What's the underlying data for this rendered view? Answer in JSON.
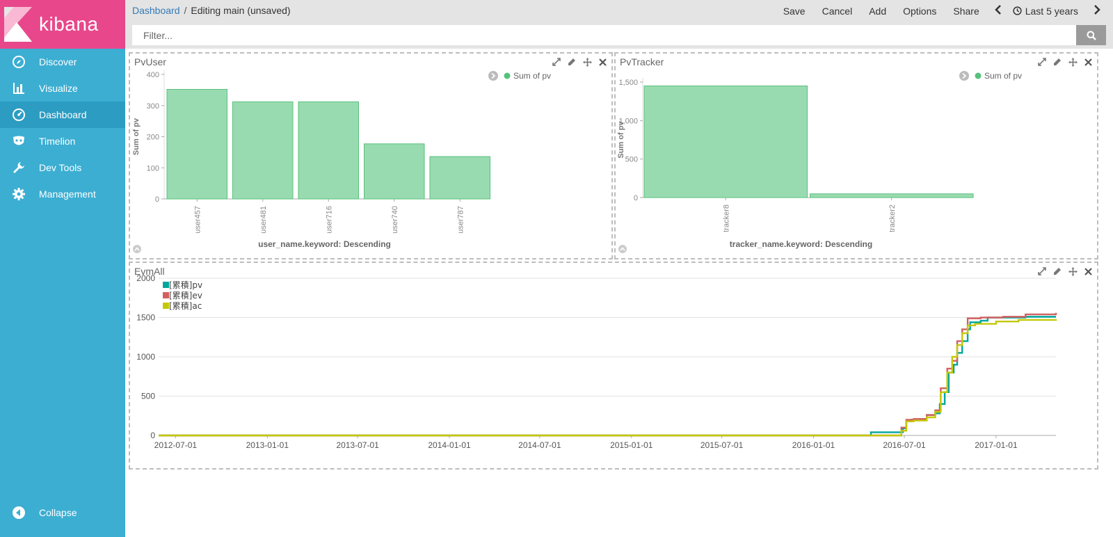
{
  "sidebar": {
    "brand": "kibana",
    "items": [
      {
        "label": "Discover",
        "icon": "compass-icon"
      },
      {
        "label": "Visualize",
        "icon": "bar-chart-icon"
      },
      {
        "label": "Dashboard",
        "icon": "dashboard-gauge-icon",
        "active": true
      },
      {
        "label": "Timelion",
        "icon": "timelion-mask-icon"
      },
      {
        "label": "Dev Tools",
        "icon": "wrench-icon"
      },
      {
        "label": "Management",
        "icon": "gear-icon"
      }
    ],
    "collapse_label": "Collapse"
  },
  "topbar": {
    "breadcrumb_root": "Dashboard",
    "breadcrumb_sep": "/",
    "breadcrumb_current": "Editing main (unsaved)",
    "menu": [
      "Save",
      "Cancel",
      "Add",
      "Options",
      "Share"
    ],
    "time_label": "Last 5 years"
  },
  "filter": {
    "placeholder": "Filter...",
    "value": ""
  },
  "colors": {
    "brand_pink": "#e8488b",
    "sidebar": "#3caed2",
    "bar_fill": "#99dbb0",
    "bar_stroke": "#57c17b",
    "series_pv": "#00a69b",
    "series_ev": "#d36060",
    "series_ac": "#c4c808"
  },
  "panels": {
    "pvuser": {
      "title": "PvUser",
      "chart_data": {
        "type": "bar",
        "categories": [
          "user457",
          "user481",
          "user716",
          "user740",
          "user787"
        ],
        "values": [
          352,
          312,
          312,
          177,
          136
        ],
        "ylabel": "Sum of pv",
        "xlabel": "user_name.keyword: Descending",
        "yticks": [
          0,
          100,
          200,
          300,
          400
        ],
        "ylim": [
          0,
          400
        ],
        "legend": [
          {
            "name": "Sum of pv",
            "color": "#57c17b"
          }
        ],
        "legend_position": "top-right"
      }
    },
    "pvtracker": {
      "title": "PvTracker",
      "chart_data": {
        "type": "bar",
        "categories": [
          "tracker8",
          "tracker2"
        ],
        "values": [
          1450,
          48
        ],
        "ylabel": "Sum of pv",
        "xlabel": "tracker_name.keyword: Descending",
        "yticks": [
          0,
          500,
          1000,
          1500
        ],
        "ytick_labels": [
          "0",
          "500",
          "1,000",
          "1,500"
        ],
        "ylim": [
          0,
          1500
        ],
        "legend": [
          {
            "name": "Sum of pv",
            "color": "#57c17b"
          }
        ],
        "legend_position": "top-right"
      }
    },
    "evmall": {
      "title": "EvmAll",
      "chart_data": {
        "type": "line",
        "x_ticks": [
          "2012-07-01",
          "2013-01-01",
          "2013-07-01",
          "2014-01-01",
          "2014-07-01",
          "2015-01-01",
          "2015-07-01",
          "2016-01-01",
          "2016-07-01",
          "2017-01-01"
        ],
        "xlim": [
          "2012-05-28",
          "2017-05-01"
        ],
        "yticks": [
          0,
          500,
          1000,
          1500,
          2000
        ],
        "ylim": [
          0,
          2000
        ],
        "grid": true,
        "legend_position": "top-left",
        "series": [
          {
            "name": "[累積]pv",
            "color": "#00a69b",
            "points": [
              [
                "2012-05-28",
                0
              ],
              [
                "2016-04-25",
                0
              ],
              [
                "2016-04-25",
                40
              ],
              [
                "2016-06-20",
                40
              ],
              [
                "2016-06-28",
                90
              ],
              [
                "2016-07-05",
                180
              ],
              [
                "2016-07-15",
                200
              ],
              [
                "2016-08-01",
                210
              ],
              [
                "2016-08-15",
                260
              ],
              [
                "2016-09-01",
                280
              ],
              [
                "2016-09-10",
                400
              ],
              [
                "2016-09-20",
                550
              ],
              [
                "2016-09-28",
                800
              ],
              [
                "2016-10-08",
                900
              ],
              [
                "2016-10-15",
                1050
              ],
              [
                "2016-10-25",
                1200
              ],
              [
                "2016-11-05",
                1350
              ],
              [
                "2016-11-10",
                1440
              ],
              [
                "2016-12-01",
                1460
              ],
              [
                "2016-12-15",
                1500
              ],
              [
                "2017-02-01",
                1500
              ],
              [
                "2017-03-01",
                1510
              ],
              [
                "2017-05-01",
                1510
              ]
            ]
          },
          {
            "name": "[累積]ev",
            "color": "#d36060",
            "points": [
              [
                "2012-05-28",
                0
              ],
              [
                "2016-06-10",
                0
              ],
              [
                "2016-06-25",
                100
              ],
              [
                "2016-07-05",
                200
              ],
              [
                "2016-07-20",
                210
              ],
              [
                "2016-08-15",
                260
              ],
              [
                "2016-09-01",
                320
              ],
              [
                "2016-09-12",
                600
              ],
              [
                "2016-09-25",
                850
              ],
              [
                "2016-10-05",
                950
              ],
              [
                "2016-10-15",
                1200
              ],
              [
                "2016-10-25",
                1350
              ],
              [
                "2016-11-05",
                1490
              ],
              [
                "2016-12-01",
                1500
              ],
              [
                "2017-01-15",
                1510
              ],
              [
                "2017-03-01",
                1540
              ],
              [
                "2017-05-01",
                1560
              ]
            ]
          },
          {
            "name": "[累積]ac",
            "color": "#c4c808",
            "points": [
              [
                "2012-05-28",
                0
              ],
              [
                "2016-06-10",
                0
              ],
              [
                "2016-06-25",
                60
              ],
              [
                "2016-07-05",
                180
              ],
              [
                "2016-07-20",
                190
              ],
              [
                "2016-08-15",
                230
              ],
              [
                "2016-09-01",
                300
              ],
              [
                "2016-09-12",
                550
              ],
              [
                "2016-09-25",
                800
              ],
              [
                "2016-10-05",
                1000
              ],
              [
                "2016-10-15",
                1150
              ],
              [
                "2016-10-25",
                1300
              ],
              [
                "2016-11-05",
                1400
              ],
              [
                "2016-11-20",
                1420
              ],
              [
                "2017-01-01",
                1450
              ],
              [
                "2017-02-15",
                1470
              ],
              [
                "2017-05-01",
                1480
              ]
            ]
          }
        ]
      }
    }
  }
}
